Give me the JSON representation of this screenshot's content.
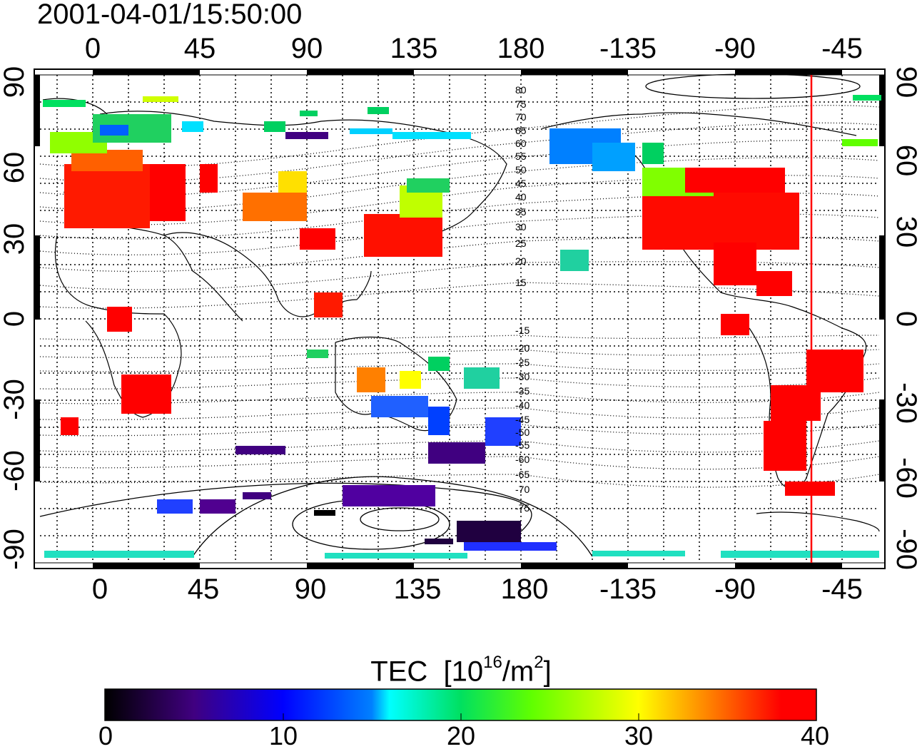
{
  "timestamp": "2001-04-01/15:50:00",
  "lon_ticks": [
    "0",
    "45",
    "90",
    "135",
    "180",
    "-135",
    "-90",
    "-45"
  ],
  "lat_ticks": [
    "90",
    "60",
    "30",
    "0",
    "-30",
    "-60",
    "-90"
  ],
  "contour_labels": [
    "80",
    "75",
    "70",
    "65",
    "60",
    "55",
    "50",
    "45",
    "40",
    "35",
    "30",
    "25",
    "20",
    "15",
    "-15",
    "-20",
    "-25",
    "-30",
    "-35",
    "-40",
    "-45",
    "-50",
    "-55",
    "-60",
    "-65",
    "-70",
    "-75"
  ],
  "colorbar": {
    "title_prefix": "TEC",
    "unit_open": "[10",
    "unit_exp": "16",
    "unit_mid": "/m",
    "unit_exp2": "2",
    "unit_close": "]",
    "min": 0,
    "max": 40,
    "labels": [
      "0",
      "10",
      "20",
      "30",
      "40"
    ]
  },
  "colors": {
    "red_line": "#ff0000",
    "coast": "#000000"
  }
}
